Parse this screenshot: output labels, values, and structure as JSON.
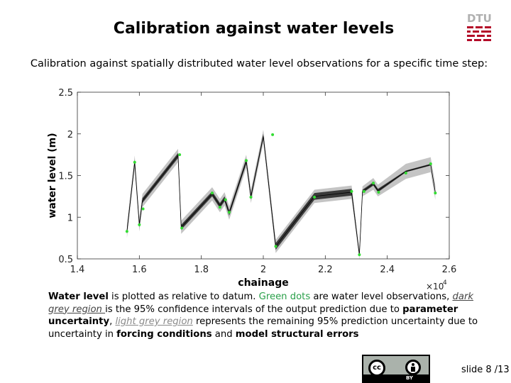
{
  "slide": {
    "title": "Calibration against water levels",
    "logo_text": "DTU",
    "intro": "Calibration against spatially distributed water level observations for a specific time step:",
    "caption": {
      "part1_bold": "Water level",
      "part2": " is plotted as relative to datum.  ",
      "part3_green": "Green dots",
      "part4": " are water level observations, ",
      "part5_dark": "dark grey region ",
      "part6": "is the 95% confidence intervals of the output prediction due to ",
      "part7_bold": "parameter uncertainty",
      "part8": ", ",
      "part9_light": "light grey region",
      "part10": " represents the remaining 95% prediction uncertainty due to uncertainty in ",
      "part11_bold": "forcing conditions",
      "part12": " and ",
      "part13_bold": "model structural errors"
    },
    "license": {
      "cc_label": "cc",
      "by_label": "BY"
    },
    "slide_number": "slide 8 /13"
  },
  "chart_data": {
    "type": "line",
    "xlabel": "chainage",
    "ylabel": "water level (m)",
    "x_multiplier": "×10",
    "x_multiplier_exp": "4",
    "xlim": [
      1.4,
      2.6
    ],
    "ylim": [
      0.5,
      2.5
    ],
    "xticks": [
      1.4,
      1.6,
      1.8,
      2.0,
      2.2,
      2.4,
      2.6
    ],
    "xtick_labels": [
      "1.4",
      "1.6",
      "1.8",
      "2",
      "2.2",
      "2.4",
      "2.6"
    ],
    "yticks": [
      0.5,
      1.0,
      1.5,
      2.0,
      2.5
    ],
    "ytick_labels": [
      "0.5",
      "1",
      "1.5",
      "2",
      "2.5"
    ],
    "grid": false,
    "colors": {
      "light_band": "#c4c4c4",
      "dark_band": "#3a3a3a",
      "observation": "#33dd33",
      "line": "#000000"
    },
    "model_line": {
      "x": [
        1.56,
        1.585,
        1.6,
        1.61,
        1.725,
        1.735,
        1.835,
        1.86,
        1.875,
        1.89,
        1.945,
        1.96,
        2.0,
        2.04,
        2.165,
        2.285,
        2.31,
        2.32,
        2.355,
        2.37,
        2.46,
        2.54,
        2.555
      ],
      "y": [
        0.83,
        1.66,
        0.91,
        1.2,
        1.74,
        0.88,
        1.28,
        1.14,
        1.22,
        1.05,
        1.67,
        1.25,
        1.97,
        0.65,
        1.25,
        1.3,
        0.55,
        1.31,
        1.4,
        1.32,
        1.55,
        1.63,
        1.3
      ],
      "band_inner": [
        0.03,
        0.03,
        0.03,
        0.03,
        0.03,
        0.03,
        0.03,
        0.03,
        0.03,
        0.03,
        0.03,
        0.03,
        0.03,
        0.04,
        0.04,
        0.04,
        0.02,
        0.02,
        0.02,
        0.02,
        0.01,
        0.01,
        0.01
      ],
      "band_outer": [
        0.08,
        0.08,
        0.08,
        0.08,
        0.08,
        0.08,
        0.08,
        0.08,
        0.08,
        0.08,
        0.08,
        0.08,
        0.08,
        0.08,
        0.08,
        0.08,
        0.06,
        0.06,
        0.07,
        0.07,
        0.09,
        0.09,
        0.09
      ]
    },
    "observations": {
      "x": [
        1.56,
        1.585,
        1.6,
        1.612,
        1.73,
        1.737,
        1.835,
        1.86,
        1.878,
        1.89,
        1.945,
        1.96,
        2.03,
        2.04,
        2.165,
        2.285,
        2.31,
        2.325,
        2.355,
        2.372,
        2.46,
        2.54,
        2.555
      ],
      "y": [
        0.83,
        1.66,
        0.91,
        1.1,
        1.75,
        0.87,
        1.29,
        1.12,
        1.21,
        1.06,
        1.68,
        1.24,
        1.99,
        0.65,
        1.24,
        1.31,
        0.55,
        1.31,
        1.41,
        1.3,
        1.53,
        1.64,
        1.29
      ]
    }
  }
}
